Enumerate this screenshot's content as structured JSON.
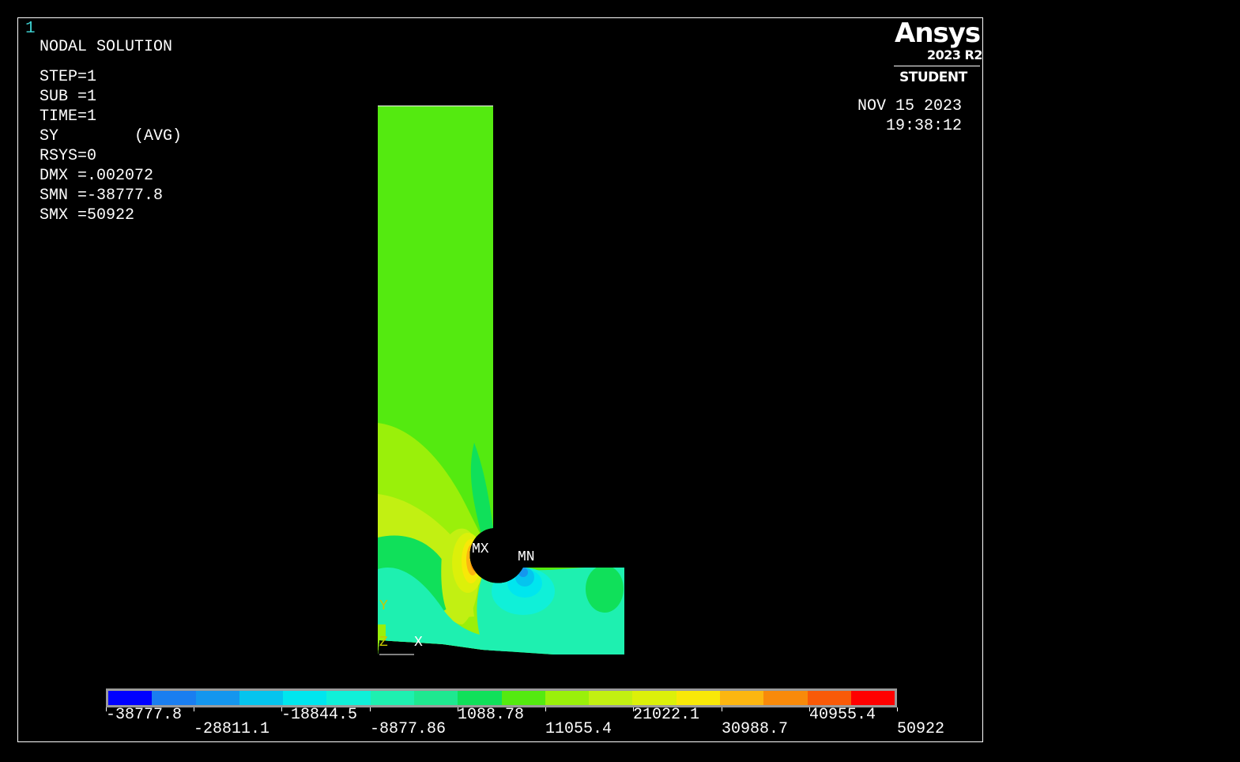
{
  "window_number": "1",
  "info": {
    "title": "NODAL SOLUTION",
    "step": "STEP=1",
    "sub": "SUB =1",
    "time": "TIME=1",
    "component": "SY        (AVG)",
    "rsys": "RSYS=0",
    "dmx": "DMX =.002072",
    "smn": "SMN =-38777.8",
    "smx": "SMX =50922"
  },
  "logo": {
    "brand": "Ansys",
    "version": "2023 R2",
    "edition": "STUDENT"
  },
  "date": "NOV 15 2023",
  "clock": "19:38:12",
  "labels": {
    "max": "MX",
    "min": "MN",
    "axis_y": "Y",
    "axis_z": "Z",
    "axis_x": "X"
  },
  "legend": {
    "colors": [
      "#0000ff",
      "#1a7ef0",
      "#1496ee",
      "#05c4ee",
      "#00e6ee",
      "#10f0d8",
      "#1ef0b0",
      "#1ee890",
      "#10e05a",
      "#54ea10",
      "#9af00a",
      "#c2f012",
      "#dcf00a",
      "#f8e808",
      "#fcb610",
      "#f88a0a",
      "#f85a08",
      "#ff0000"
    ],
    "top_labels": [
      "-38777.8",
      "-18844.5",
      "1088.78",
      "21022.1",
      "40955.4"
    ],
    "bottom_labels": [
      "-28811.1",
      "-8877.86",
      "11055.4",
      "30988.7",
      "50922"
    ]
  }
}
